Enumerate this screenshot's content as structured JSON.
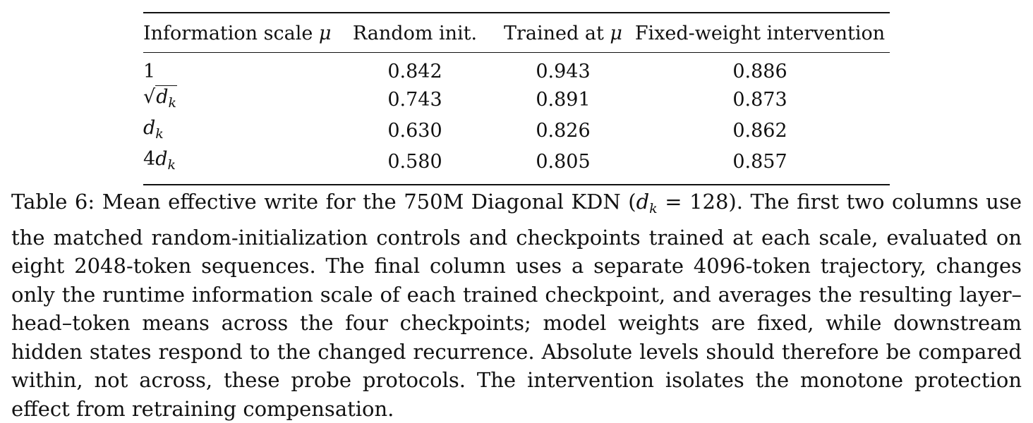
{
  "table": {
    "headers": [
      "Information scale μ",
      "Random init.",
      "Trained at μ",
      "Fixed-weight intervention"
    ],
    "rows": [
      {
        "scale": "1",
        "random_init": "0.842",
        "trained": "0.943",
        "intervention": "0.886"
      },
      {
        "scale": "√dk",
        "random_init": "0.743",
        "trained": "0.891",
        "intervention": "0.873"
      },
      {
        "scale": "dk",
        "random_init": "0.630",
        "trained": "0.826",
        "intervention": "0.862"
      },
      {
        "scale": "4dk",
        "random_init": "0.580",
        "trained": "0.805",
        "intervention": "0.857"
      }
    ]
  },
  "caption": "Table 6: Mean effective write for the 750M Diagonal KDN (dk = 128). The first two columns use the matched random-initialization controls and checkpoints trained at each scale, evaluated on eight 2048-token sequences. The final column uses a separate 4096-token trajectory, changes only the runtime information scale of each trained checkpoint, and averages the resulting layer–head–token means across the four checkpoints; model weights are fixed, while downstream hidden states respond to the changed recurrence. Absolute levels should therefore be compared within, not across, these probe protocols. The intervention isolates the monotone protection effect from retraining compensation."
}
